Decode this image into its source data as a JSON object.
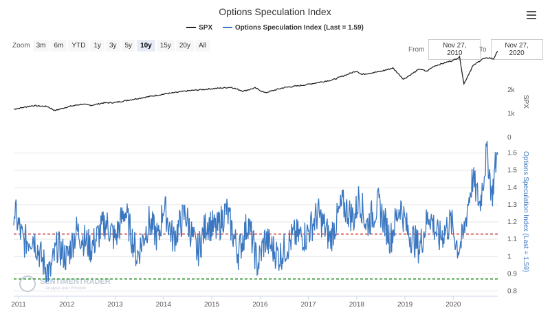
{
  "chart_title": "Options Speculation Index",
  "legend": [
    {
      "label": "SPX",
      "color": "#222222"
    },
    {
      "label": "Options Speculation Index (Last = 1.59)",
      "color": "#3a77c0"
    }
  ],
  "zoom": {
    "label": "Zoom",
    "buttons": [
      {
        "label": "3m",
        "active": false
      },
      {
        "label": "6m",
        "active": false
      },
      {
        "label": "YTD",
        "active": false
      },
      {
        "label": "1y",
        "active": false
      },
      {
        "label": "3y",
        "active": false
      },
      {
        "label": "5y",
        "active": false
      },
      {
        "label": "10y",
        "active": true
      },
      {
        "label": "15y",
        "active": false
      },
      {
        "label": "20y",
        "active": false
      },
      {
        "label": "All",
        "active": false
      }
    ]
  },
  "date_range": {
    "from_label": "From",
    "from": "Nov 27, 2010",
    "to_label": "To",
    "to": "Nov 27, 2020"
  },
  "watermark": {
    "name": "SENTIMENTRADER",
    "tagline": "Analysis over Emotion"
  },
  "colors": {
    "spx": "#222222",
    "osi": "#3a77c0",
    "upper_ref": "#cc1111",
    "lower_ref": "#1f8a1f"
  },
  "chart_data": [
    {
      "type": "line",
      "name": "SPX",
      "x_range": [
        2010.9,
        2020.92
      ],
      "ylim": [
        0,
        3700
      ],
      "y_ticks": [
        {
          "v": 0,
          "label": "0"
        },
        {
          "v": 1000,
          "label": "1k"
        },
        {
          "v": 2000,
          "label": "2k"
        }
      ],
      "ylabel": "SPX",
      "x": [
        2010.9,
        2011.3,
        2011.6,
        2011.75,
        2012.0,
        2012.3,
        2012.5,
        2012.75,
        2013.0,
        2013.5,
        2014.0,
        2014.5,
        2015.0,
        2015.4,
        2015.65,
        2015.9,
        2016.1,
        2016.5,
        2016.9,
        2017.5,
        2018.0,
        2018.1,
        2018.5,
        2018.75,
        2018.97,
        2019.3,
        2019.45,
        2019.6,
        2020.0,
        2020.13,
        2020.22,
        2020.4,
        2020.6,
        2020.75,
        2020.83,
        2020.92
      ],
      "y": [
        1190,
        1340,
        1300,
        1130,
        1280,
        1400,
        1350,
        1450,
        1470,
        1650,
        1820,
        1960,
        2050,
        2110,
        1950,
        2080,
        1880,
        2100,
        2200,
        2420,
        2800,
        2650,
        2780,
        2920,
        2450,
        2880,
        2780,
        3000,
        3250,
        3380,
        2250,
        3000,
        3300,
        3350,
        3300,
        3630
      ]
    },
    {
      "type": "line",
      "name": "Options Speculation Index (Last = 1.59)",
      "x_range": [
        2010.9,
        2020.92
      ],
      "ylim": [
        0.77,
        1.69
      ],
      "y_ticks": [
        0.8,
        0.9,
        1,
        1.1,
        1.2,
        1.3,
        1.4,
        1.5,
        1.6
      ],
      "ylabel": "Options Speculation Index (Last = 1.59)",
      "reference_lines": [
        {
          "y": 1.13,
          "color": "#cc1111",
          "style": "dashed"
        },
        {
          "y": 0.87,
          "color": "#1f8a1f",
          "style": "dashed"
        }
      ],
      "x": [
        2010.9,
        2011.1,
        2011.3,
        2011.5,
        2011.65,
        2011.8,
        2012.0,
        2012.2,
        2012.5,
        2012.8,
        2013.0,
        2013.2,
        2013.45,
        2013.7,
        2013.9,
        2014.0,
        2014.2,
        2014.45,
        2014.7,
        2014.9,
        2015.1,
        2015.3,
        2015.55,
        2015.75,
        2015.95,
        2016.1,
        2016.4,
        2016.7,
        2016.95,
        2017.2,
        2017.45,
        2017.7,
        2017.95,
        2018.05,
        2018.2,
        2018.45,
        2018.7,
        2018.9,
        2019.05,
        2019.3,
        2019.5,
        2019.7,
        2019.95,
        2020.1,
        2020.2,
        2020.3,
        2020.4,
        2020.55,
        2020.7,
        2020.8,
        2020.88,
        2020.92
      ],
      "y": [
        1.28,
        1.08,
        1.12,
        0.97,
        0.9,
        1.06,
        0.99,
        1.15,
        1.05,
        1.2,
        1.1,
        1.27,
        1.0,
        1.2,
        1.1,
        1.3,
        1.1,
        1.25,
        1.02,
        1.2,
        1.15,
        1.27,
        1.02,
        1.2,
        0.95,
        1.1,
        1.0,
        1.12,
        1.12,
        1.25,
        1.1,
        1.3,
        1.22,
        1.35,
        1.18,
        1.3,
        1.1,
        1.3,
        1.15,
        1.05,
        1.25,
        1.1,
        1.2,
        1.05,
        1.1,
        1.3,
        1.45,
        1.3,
        1.62,
        1.35,
        1.55,
        1.59
      ]
    }
  ],
  "x_axis": {
    "ticks": [
      "2011",
      "2012",
      "2013",
      "2014",
      "2015",
      "2016",
      "2017",
      "2018",
      "2019",
      "2020"
    ]
  }
}
